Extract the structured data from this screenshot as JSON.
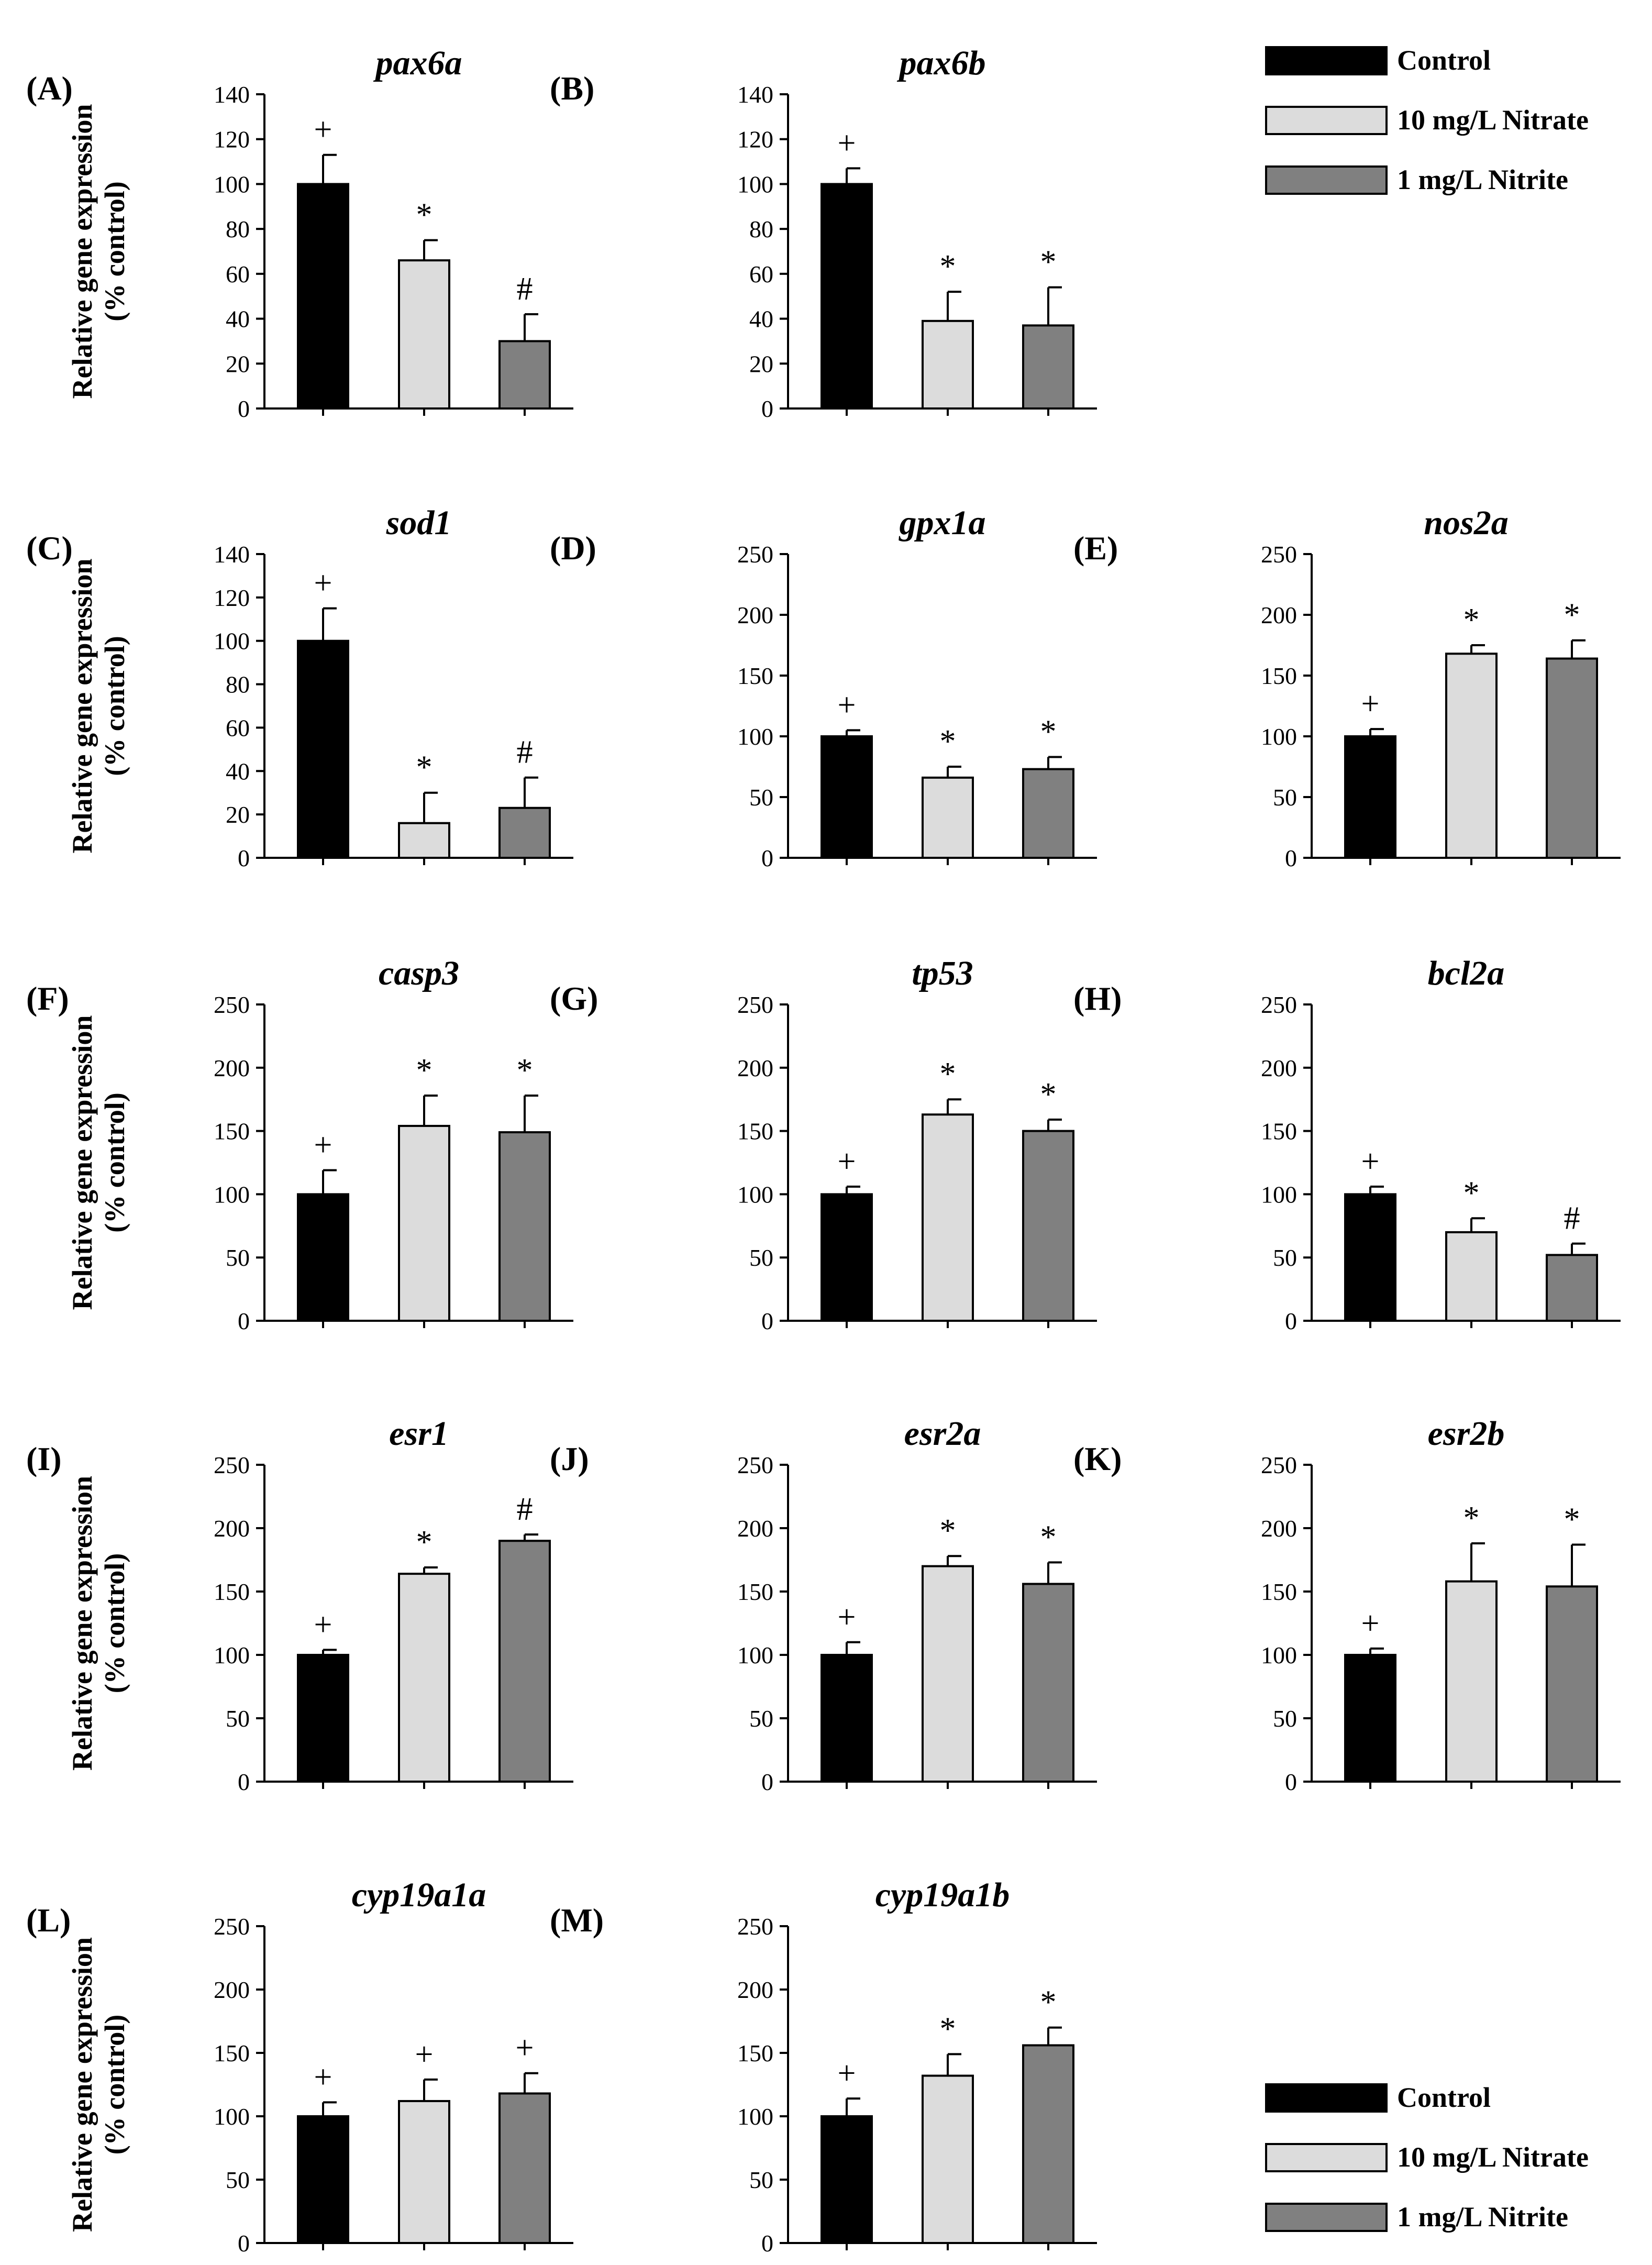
{
  "figure": {
    "y_axis_label_line1": "Relative gene expression",
    "y_axis_label_line2": "(% control)",
    "legend": [
      {
        "label": "Control",
        "color": "#000000"
      },
      {
        "label": "10 mg/L Nitrate",
        "color": "#dcdcdc"
      },
      {
        "label": "1 mg/L Nitrite",
        "color": "#808080"
      }
    ]
  },
  "chart_data": [
    {
      "type": "bar",
      "panel": "(A)",
      "title": "pax6a",
      "ylim": [
        0,
        140
      ],
      "yticks": [
        0,
        20,
        40,
        60,
        80,
        100,
        120,
        140
      ],
      "series": [
        {
          "name": "Control",
          "value": 100,
          "error": 13,
          "mark": "+"
        },
        {
          "name": "10 mg/L Nitrate",
          "value": 66,
          "error": 9,
          "mark": "*"
        },
        {
          "name": "1 mg/L Nitrite",
          "value": 30,
          "error": 12,
          "mark": "#"
        }
      ]
    },
    {
      "type": "bar",
      "panel": "(B)",
      "title": "pax6b",
      "ylim": [
        0,
        140
      ],
      "yticks": [
        0,
        20,
        40,
        60,
        80,
        100,
        120,
        140
      ],
      "series": [
        {
          "name": "Control",
          "value": 100,
          "error": 7,
          "mark": "+"
        },
        {
          "name": "10 mg/L Nitrate",
          "value": 39,
          "error": 13,
          "mark": "*"
        },
        {
          "name": "1 mg/L Nitrite",
          "value": 37,
          "error": 17,
          "mark": "*"
        }
      ]
    },
    {
      "type": "bar",
      "panel": "(C)",
      "title": "sod1",
      "ylim": [
        0,
        140
      ],
      "yticks": [
        0,
        20,
        40,
        60,
        80,
        100,
        120,
        140
      ],
      "series": [
        {
          "name": "Control",
          "value": 100,
          "error": 15,
          "mark": "+"
        },
        {
          "name": "10 mg/L Nitrate",
          "value": 16,
          "error": 14,
          "mark": "*"
        },
        {
          "name": "1 mg/L Nitrite",
          "value": 23,
          "error": 14,
          "mark": "#"
        }
      ]
    },
    {
      "type": "bar",
      "panel": "(D)",
      "title": "gpx1a",
      "ylim": [
        0,
        250
      ],
      "yticks": [
        0,
        50,
        100,
        150,
        200,
        250
      ],
      "series": [
        {
          "name": "Control",
          "value": 100,
          "error": 5,
          "mark": "+"
        },
        {
          "name": "10 mg/L Nitrate",
          "value": 66,
          "error": 9,
          "mark": "*"
        },
        {
          "name": "1 mg/L Nitrite",
          "value": 73,
          "error": 10,
          "mark": "*"
        }
      ]
    },
    {
      "type": "bar",
      "panel": "(E)",
      "title": "nos2a",
      "ylim": [
        0,
        250
      ],
      "yticks": [
        0,
        50,
        100,
        150,
        200,
        250
      ],
      "series": [
        {
          "name": "Control",
          "value": 100,
          "error": 6,
          "mark": "+"
        },
        {
          "name": "10 mg/L Nitrate",
          "value": 168,
          "error": 7,
          "mark": "*"
        },
        {
          "name": "1 mg/L Nitrite",
          "value": 164,
          "error": 15,
          "mark": "*"
        }
      ]
    },
    {
      "type": "bar",
      "panel": "(F)",
      "title": "casp3",
      "ylim": [
        0,
        250
      ],
      "yticks": [
        0,
        50,
        100,
        150,
        200,
        250
      ],
      "series": [
        {
          "name": "Control",
          "value": 100,
          "error": 19,
          "mark": "+"
        },
        {
          "name": "10 mg/L Nitrate",
          "value": 154,
          "error": 24,
          "mark": "*"
        },
        {
          "name": "1 mg/L Nitrite",
          "value": 149,
          "error": 29,
          "mark": "*"
        }
      ]
    },
    {
      "type": "bar",
      "panel": "(G)",
      "title": "tp53",
      "ylim": [
        0,
        250
      ],
      "yticks": [
        0,
        50,
        100,
        150,
        200,
        250
      ],
      "series": [
        {
          "name": "Control",
          "value": 100,
          "error": 6,
          "mark": "+"
        },
        {
          "name": "10 mg/L Nitrate",
          "value": 163,
          "error": 12,
          "mark": "*"
        },
        {
          "name": "1 mg/L Nitrite",
          "value": 150,
          "error": 9,
          "mark": "*"
        }
      ]
    },
    {
      "type": "bar",
      "panel": "(H)",
      "title": "bcl2a",
      "ylim": [
        0,
        250
      ],
      "yticks": [
        0,
        50,
        100,
        150,
        200,
        250
      ],
      "series": [
        {
          "name": "Control",
          "value": 100,
          "error": 6,
          "mark": "+"
        },
        {
          "name": "10 mg/L Nitrate",
          "value": 70,
          "error": 11,
          "mark": "*"
        },
        {
          "name": "1 mg/L Nitrite",
          "value": 52,
          "error": 9,
          "mark": "#"
        }
      ]
    },
    {
      "type": "bar",
      "panel": "(I)",
      "title": "esr1",
      "ylim": [
        0,
        250
      ],
      "yticks": [
        0,
        50,
        100,
        150,
        200,
        250
      ],
      "series": [
        {
          "name": "Control",
          "value": 100,
          "error": 4,
          "mark": "+"
        },
        {
          "name": "10 mg/L Nitrate",
          "value": 164,
          "error": 5,
          "mark": "*"
        },
        {
          "name": "1 mg/L Nitrite",
          "value": 190,
          "error": 5,
          "mark": "#"
        }
      ]
    },
    {
      "type": "bar",
      "panel": "(J)",
      "title": "esr2a",
      "ylim": [
        0,
        250
      ],
      "yticks": [
        0,
        50,
        100,
        150,
        200,
        250
      ],
      "series": [
        {
          "name": "Control",
          "value": 100,
          "error": 10,
          "mark": "+"
        },
        {
          "name": "10 mg/L Nitrate",
          "value": 170,
          "error": 8,
          "mark": "*"
        },
        {
          "name": "1 mg/L Nitrite",
          "value": 156,
          "error": 17,
          "mark": "*"
        }
      ]
    },
    {
      "type": "bar",
      "panel": "(K)",
      "title": "esr2b",
      "ylim": [
        0,
        250
      ],
      "yticks": [
        0,
        50,
        100,
        150,
        200,
        250
      ],
      "series": [
        {
          "name": "Control",
          "value": 100,
          "error": 5,
          "mark": "+"
        },
        {
          "name": "10 mg/L Nitrate",
          "value": 158,
          "error": 30,
          "mark": "*"
        },
        {
          "name": "1 mg/L Nitrite",
          "value": 154,
          "error": 33,
          "mark": "*"
        }
      ]
    },
    {
      "type": "bar",
      "panel": "(L)",
      "title": "cyp19a1a",
      "ylim": [
        0,
        250
      ],
      "yticks": [
        0,
        50,
        100,
        150,
        200,
        250
      ],
      "series": [
        {
          "name": "Control",
          "value": 100,
          "error": 11,
          "mark": "+"
        },
        {
          "name": "10 mg/L Nitrate",
          "value": 112,
          "error": 17,
          "mark": "+"
        },
        {
          "name": "1 mg/L Nitrite",
          "value": 118,
          "error": 16,
          "mark": "+"
        }
      ]
    },
    {
      "type": "bar",
      "panel": "(M)",
      "title": "cyp19a1b",
      "ylim": [
        0,
        250
      ],
      "yticks": [
        0,
        50,
        100,
        150,
        200,
        250
      ],
      "series": [
        {
          "name": "Control",
          "value": 100,
          "error": 14,
          "mark": "+"
        },
        {
          "name": "10 mg/L Nitrate",
          "value": 132,
          "error": 17,
          "mark": "*"
        },
        {
          "name": "1 mg/L Nitrite",
          "value": 156,
          "error": 14,
          "mark": "*"
        }
      ]
    }
  ]
}
